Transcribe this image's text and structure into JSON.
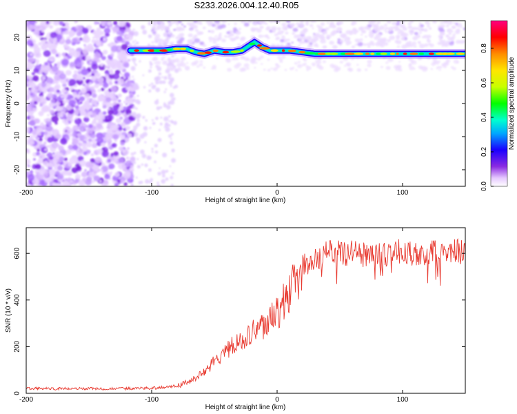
{
  "figure": {
    "title": "S233.2026.004.12.40.R05"
  },
  "chart_data": [
    {
      "type": "heatmap",
      "xlabel": "Height of straight line (km)",
      "ylabel": "Frequency (Hz)",
      "xlim": [
        -200,
        150
      ],
      "ylim": [
        -25,
        25
      ],
      "xticks": [
        -200,
        -100,
        0,
        100
      ],
      "yticks": [
        20,
        10,
        0,
        -10,
        -20
      ],
      "grid": false,
      "colorbar": {
        "label": "Normalized spectral amplitude",
        "range": [
          0.0,
          0.96
        ],
        "ticks": [
          0.0,
          0.2,
          0.4,
          0.6,
          0.8
        ],
        "colormap": [
          "#ffffff",
          "#e6c9ff",
          "#8a2be2",
          "#1a00ff",
          "#00a8ff",
          "#00ffd0",
          "#00ff00",
          "#c8ff00",
          "#ffe600",
          "#ff8c00",
          "#ff0000",
          "#ff007f"
        ]
      },
      "ridge_frequency_hz": {
        "x": [
          -117,
          -100,
          -90,
          -80,
          -72,
          -65,
          -58,
          -50,
          -42,
          -35,
          -28,
          -22,
          -18,
          -12,
          -6,
          0,
          10,
          20,
          30,
          50,
          80,
          100,
          120,
          150
        ],
        "y": [
          16,
          16,
          16,
          16.5,
          16.5,
          15.5,
          15,
          16,
          15.5,
          15.5,
          16,
          17.5,
          18.5,
          17,
          16,
          16,
          16,
          15.5,
          15,
          15,
          15,
          15,
          15,
          15
        ]
      }
    },
    {
      "type": "line",
      "xlabel": "Height of straight line (km)",
      "ylabel": "SNR (10 * v/v)",
      "xlim": [
        -200,
        150
      ],
      "ylim": [
        0,
        710
      ],
      "xticks": [
        -200,
        -100,
        0,
        100
      ],
      "yticks": [
        0,
        200,
        400,
        600
      ],
      "grid": false,
      "color": "#e83a30",
      "series": [
        {
          "x": [
            -200,
            -180,
            -160,
            -140,
            -120,
            -100,
            -90,
            -80,
            -75,
            -70,
            -65,
            -60,
            -55,
            -50,
            -45,
            -40,
            -35,
            -30,
            -25,
            -20,
            -15,
            -10,
            -5,
            0,
            5,
            10,
            15,
            20,
            30,
            40,
            50,
            60,
            70,
            80,
            90,
            100,
            110,
            120,
            130,
            140,
            150
          ],
          "values": [
            20,
            20,
            20,
            20,
            20,
            22,
            25,
            32,
            40,
            50,
            65,
            85,
            110,
            135,
            160,
            185,
            205,
            225,
            245,
            265,
            285,
            300,
            320,
            345,
            385,
            430,
            490,
            540,
            580,
            600,
            600,
            600,
            595,
            590,
            600,
            610,
            600,
            605,
            600,
            610,
            600
          ]
        }
      ]
    }
  ]
}
